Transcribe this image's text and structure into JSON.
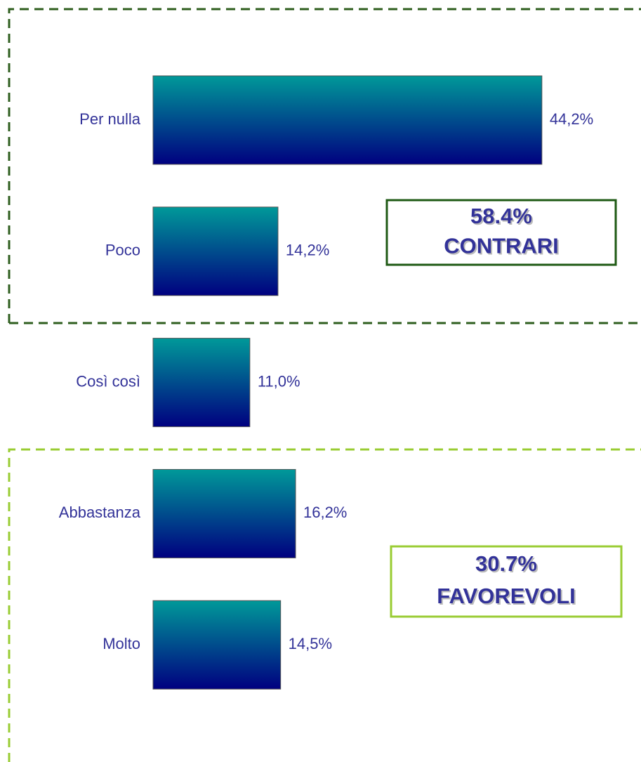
{
  "chart_data": {
    "type": "bar",
    "orientation": "horizontal",
    "categories": [
      "Per nulla",
      "Poco",
      "Così così",
      "Abbastanza",
      "Molto"
    ],
    "values": [
      44.2,
      14.2,
      11.0,
      16.2,
      14.5
    ],
    "value_labels": [
      "44,2%",
      "14,2%",
      "11,0%",
      "16,2%",
      "14,5%"
    ],
    "color": [
      "#009999",
      "#000080"
    ],
    "annotations": [
      {
        "text": [
          "58.4%",
          "CONTRARI"
        ],
        "color": "#1f5a14"
      },
      {
        "text": [
          "30.7%",
          "FAVOREVOLI"
        ],
        "color": "#99cc33"
      }
    ]
  }
}
